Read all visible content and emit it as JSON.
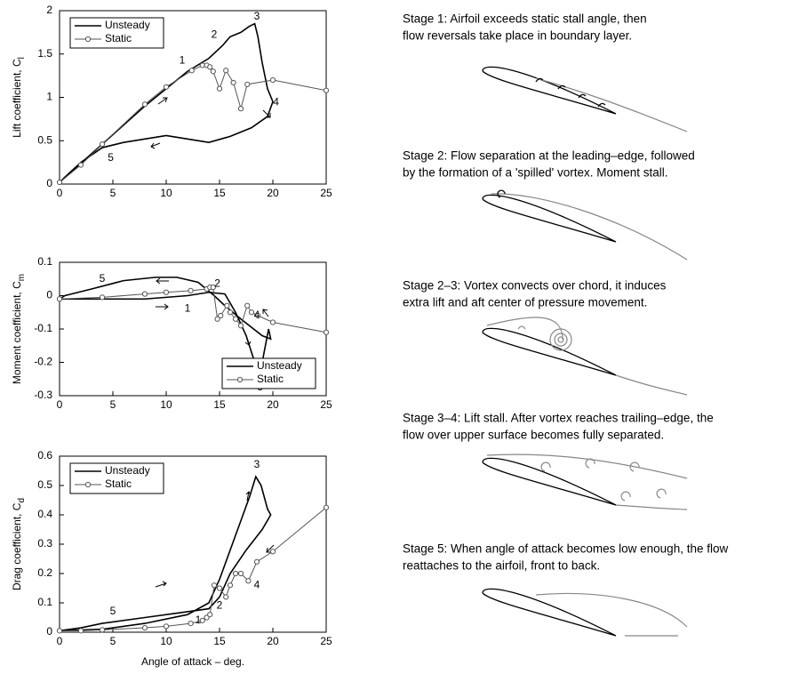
{
  "chart_data": [
    {
      "type": "line",
      "ylabel": "Lift coefficient, C",
      "ylabel_sub": "l",
      "legend": "upper left",
      "xlim": [
        0,
        25
      ],
      "xticks": [
        0,
        5,
        10,
        15,
        20,
        25
      ],
      "ylim": [
        0,
        2
      ],
      "yticks": [
        0,
        0.5,
        1,
        1.5,
        2
      ],
      "series": [
        {
          "name": "Unsteady",
          "color": "#000000",
          "marker": "none",
          "x": [
            0,
            2,
            4,
            8,
            12,
            14,
            15.3,
            16,
            17,
            17.8,
            18.3,
            18.6,
            19,
            19.5,
            20,
            19.5,
            18,
            16,
            14,
            12,
            10,
            8,
            6,
            4,
            2,
            0.5,
            0
          ],
          "values": [
            0.02,
            0.24,
            0.46,
            0.9,
            1.3,
            1.45,
            1.6,
            1.7,
            1.75,
            1.82,
            1.85,
            1.7,
            1.4,
            1.1,
            0.95,
            0.78,
            0.65,
            0.55,
            0.48,
            0.52,
            0.56,
            0.52,
            0.48,
            0.42,
            0.25,
            0.08,
            0.02
          ]
        },
        {
          "name": "Static",
          "color": "#555555",
          "marker": "circle",
          "x": [
            0,
            2,
            4,
            8,
            10,
            12.4,
            13.4,
            13.8,
            14.1,
            14.4,
            15,
            15.6,
            16.3,
            17,
            17.6,
            20,
            25
          ],
          "values": [
            0.02,
            0.22,
            0.46,
            0.92,
            1.12,
            1.31,
            1.37,
            1.37,
            1.35,
            1.3,
            1.1,
            1.31,
            1.17,
            0.87,
            1.15,
            1.2,
            1.08
          ]
        }
      ],
      "annotations": [
        {
          "text": "1",
          "x": 11.5,
          "y": 1.42
        },
        {
          "text": "2",
          "x": 14.5,
          "y": 1.72
        },
        {
          "text": "3",
          "x": 18.5,
          "y": 1.93
        },
        {
          "text": "4",
          "x": 20.3,
          "y": 0.94
        },
        {
          "text": "5",
          "x": 4.8,
          "y": 0.3
        }
      ]
    },
    {
      "type": "line",
      "ylabel": "Moment coefficient, C",
      "ylabel_sub": "m",
      "legend": "lower right",
      "xlim": [
        0,
        25
      ],
      "xticks": [
        0,
        5,
        10,
        15,
        20,
        25
      ],
      "ylim": [
        -0.3,
        0.1
      ],
      "yticks": [
        -0.3,
        -0.2,
        -0.1,
        0,
        0.1
      ],
      "series": [
        {
          "name": "Unsteady",
          "color": "#000000",
          "marker": "none",
          "x": [
            0,
            2,
            4,
            8,
            12,
            14,
            15.5,
            16.5,
            17.5,
            18.3,
            18.6,
            19,
            19.6,
            19.8,
            19,
            17,
            15.5,
            14.5,
            13,
            11,
            9,
            6,
            3,
            0.5,
            0
          ],
          "values": [
            -0.01,
            -0.01,
            -0.01,
            -0.01,
            0,
            0.01,
            0.005,
            -0.05,
            -0.12,
            -0.2,
            -0.24,
            -0.2,
            -0.1,
            -0.13,
            -0.12,
            -0.07,
            -0.03,
            0,
            0.04,
            0.055,
            0.055,
            0.045,
            0.02,
            0,
            -0.01
          ]
        },
        {
          "name": "Static",
          "color": "#555555",
          "marker": "circle",
          "x": [
            0,
            4,
            8,
            10,
            12.3,
            13.8,
            14.1,
            14.4,
            14.8,
            15.1,
            15.7,
            16,
            16.5,
            17,
            17.6,
            18,
            18.6,
            20,
            25
          ],
          "values": [
            -0.01,
            -0.005,
            0.005,
            0.01,
            0.015,
            0.02,
            0.025,
            0.025,
            -0.07,
            -0.06,
            -0.03,
            -0.05,
            -0.07,
            -0.09,
            -0.03,
            -0.05,
            -0.06,
            -0.08,
            -0.11
          ]
        }
      ],
      "annotations": [
        {
          "text": "1",
          "x": 12,
          "y": -0.04
        },
        {
          "text": "2",
          "x": 14.8,
          "y": 0.035
        },
        {
          "text": "3",
          "x": 18.8,
          "y": -0.275
        },
        {
          "text": "4",
          "x": 18.5,
          "y": -0.06
        },
        {
          "text": "5",
          "x": 4,
          "y": 0.05
        }
      ]
    },
    {
      "type": "line",
      "ylabel": "Drag coefficient, C",
      "ylabel_sub": "d",
      "xlabel": "Angle of attack – deg.",
      "legend": "upper left",
      "xlim": [
        0,
        25
      ],
      "xticks": [
        0,
        5,
        10,
        15,
        20,
        25
      ],
      "ylim": [
        0,
        0.6
      ],
      "yticks": [
        0,
        0.1,
        0.2,
        0.3,
        0.4,
        0.5,
        0.6
      ],
      "series": [
        {
          "name": "Unsteady",
          "color": "#000000",
          "marker": "none",
          "x": [
            0,
            4,
            8,
            12,
            14,
            15,
            16,
            17,
            17.8,
            18.4,
            18.9,
            19.5,
            19.8,
            19,
            17.5,
            16,
            15,
            14,
            12,
            8,
            4,
            2,
            0
          ],
          "values": [
            0.005,
            0.01,
            0.03,
            0.06,
            0.1,
            0.18,
            0.28,
            0.38,
            0.46,
            0.53,
            0.5,
            0.42,
            0.4,
            0.35,
            0.28,
            0.2,
            0.12,
            0.08,
            0.07,
            0.05,
            0.03,
            0.015,
            0.005
          ]
        },
        {
          "name": "Static",
          "color": "#555555",
          "marker": "circle",
          "x": [
            0,
            2,
            4,
            8,
            10,
            12.3,
            13.4,
            13.8,
            14.1,
            14.5,
            15,
            15.6,
            16,
            16.5,
            17,
            17.7,
            18.5,
            20,
            25
          ],
          "values": [
            0.005,
            0.005,
            0.008,
            0.015,
            0.02,
            0.03,
            0.04,
            0.05,
            0.06,
            0.16,
            0.15,
            0.12,
            0.16,
            0.2,
            0.2,
            0.175,
            0.24,
            0.275,
            0.425
          ]
        }
      ],
      "annotations": [
        {
          "text": "1",
          "x": 13,
          "y": 0.04
        },
        {
          "text": "2",
          "x": 15,
          "y": 0.09
        },
        {
          "text": "3",
          "x": 18.5,
          "y": 0.57
        },
        {
          "text": "4",
          "x": 18.5,
          "y": 0.16
        },
        {
          "text": "5",
          "x": 5,
          "y": 0.07
        }
      ]
    }
  ],
  "stages": [
    [
      "Stage 1: Airfoil exceeds static stall angle, then",
      "flow reversals take place in boundary layer."
    ],
    [
      "Stage 2: Flow separation at the leading–edge, followed",
      "by the formation of a 'spilled' vortex. Moment stall."
    ],
    [
      "Stage 2–3: Vortex convects over chord, it induces",
      "extra lift and aft center of pressure movement."
    ],
    [
      "Stage 3–4: Lift stall. After vortex reaches trailing–edge,  the",
      "flow over upper surface becomes fully separated."
    ],
    [
      "Stage 5: When angle of attack becomes low enough, the flow",
      "reattaches to the airfoil, front to back."
    ]
  ]
}
